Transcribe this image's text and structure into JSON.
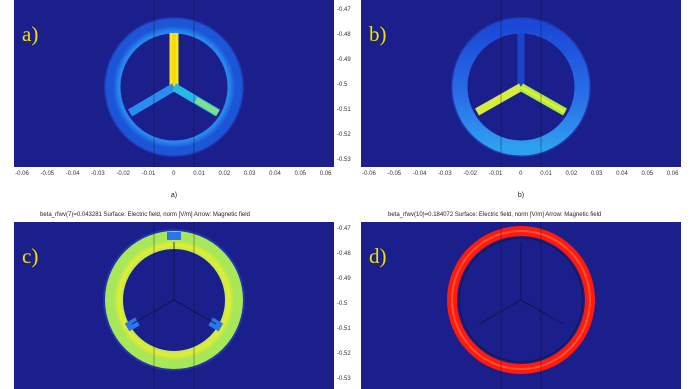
{
  "panels": [
    {
      "id": "a",
      "letter": "a)",
      "caption": "a)",
      "mode": "spoke-vertical"
    },
    {
      "id": "b",
      "letter": "b)",
      "caption": "b)",
      "mode": "spoke-lower"
    },
    {
      "id": "c",
      "letter": "c)",
      "title": "beta_rfwv(7)=0.043281   Surface: Electric field, norm [V/m]   Arrow: Magnetic field",
      "mode": "ring-yellow"
    },
    {
      "id": "d",
      "letter": "d)",
      "title": "beta_rfwv(10)=0.184072   Surface: Electric field, norm [V/m]   Arrow: Magnetic field",
      "mode": "ring-red"
    }
  ],
  "x_ticks": [
    "-0.06",
    "-0.05",
    "-0.04",
    "-0.03",
    "-0.02",
    "-0.01",
    "0",
    "0.01",
    "0.02",
    "0.03",
    "0.04",
    "0.05",
    "0.06"
  ],
  "y_ticks_top": [
    "-0.47",
    "-0.48",
    "-0.49",
    "-0.5",
    "-0.51",
    "-0.52",
    "-0.53"
  ],
  "y_ticks_bottom": [
    "-0.47",
    "-0.48",
    "-0.49",
    "-0.5",
    "-0.51",
    "-0.52",
    "-0.53"
  ],
  "colors": {
    "background": "#1b1f8c",
    "letter": "#f3e000",
    "ring_blue": "#1f68e0",
    "spoke_yellow": "#ecec20",
    "spoke_green": "#9be850",
    "ring_yellow": "#e6ec3a",
    "ring_red": "#ff1a10"
  }
}
